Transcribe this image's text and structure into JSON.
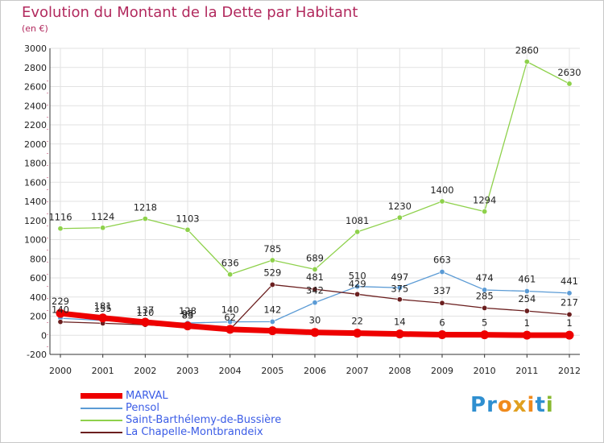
{
  "title": "Evolution du Montant de la Dette par Habitant",
  "unit": "(en €)",
  "logo": {
    "text": "Proxiti",
    "letters": [
      "P",
      "r",
      "o",
      "x",
      "i",
      "t",
      "i"
    ],
    "colors": [
      "#2f8fd0",
      "#2f8fd0",
      "#f08a1c",
      "#e0a020",
      "#f08a1c",
      "#2f8fd0",
      "#88b830"
    ]
  },
  "chart_data": {
    "type": "line",
    "x": [
      "2000",
      "2001",
      "2002",
      "2003",
      "2004",
      "2005",
      "2006",
      "2007",
      "2008",
      "2009",
      "2010",
      "2011",
      "2012"
    ],
    "ylim": [
      -200,
      3000
    ],
    "yticks": [
      "-200",
      "0",
      "200",
      "400",
      "600",
      "800",
      "1000",
      "1200",
      "1400",
      "1600",
      "1800",
      "2000",
      "2200",
      "2400",
      "2600",
      "2800",
      "3000"
    ],
    "grid": true,
    "legend": "bottom-left",
    "series": [
      {
        "name": "MARVAL",
        "color": "#ee0000",
        "width": 7,
        "values": [
          229,
          181,
          137,
          98,
          62,
          47,
          30,
          22,
          14,
          6,
          5,
          1,
          1
        ],
        "labels": [
          "229",
          "181",
          "137",
          "98",
          "62",
          "",
          "30",
          "22",
          "14",
          "6",
          "5",
          "1",
          "1"
        ]
      },
      {
        "name": "Pensol",
        "color": "#5b9bd5",
        "width": 1.3,
        "values": [
          178,
          155,
          128,
          128,
          140,
          142,
          342,
          510,
          497,
          663,
          474,
          461,
          441
        ],
        "labels": [
          "",
          "155",
          "",
          "128",
          "140",
          "142",
          "342",
          "510",
          "497",
          "663",
          "474",
          "461",
          "441"
        ]
      },
      {
        "name": "Saint-Barthélemy-de-Bussière",
        "color": "#8ed14b",
        "width": 1.3,
        "values": [
          1116,
          1124,
          1218,
          1103,
          636,
          785,
          689,
          1081,
          1230,
          1400,
          1294,
          2860,
          2630
        ],
        "labels": [
          "1116",
          "1124",
          "1218",
          "1103",
          "636",
          "785",
          "689",
          "1081",
          "1230",
          "1400",
          "1294",
          "2860",
          "2630"
        ]
      },
      {
        "name": "La Chapelle-Montbrandeix",
        "color": "#6b1f1f",
        "width": 1.3,
        "values": [
          140,
          125,
          110,
          83,
          62,
          529,
          481,
          429,
          375,
          337,
          285,
          254,
          217
        ],
        "labels": [
          "140",
          "",
          "110",
          "83",
          "",
          "529",
          "481",
          "429",
          "375",
          "337",
          "285",
          "254",
          "217"
        ]
      }
    ]
  }
}
